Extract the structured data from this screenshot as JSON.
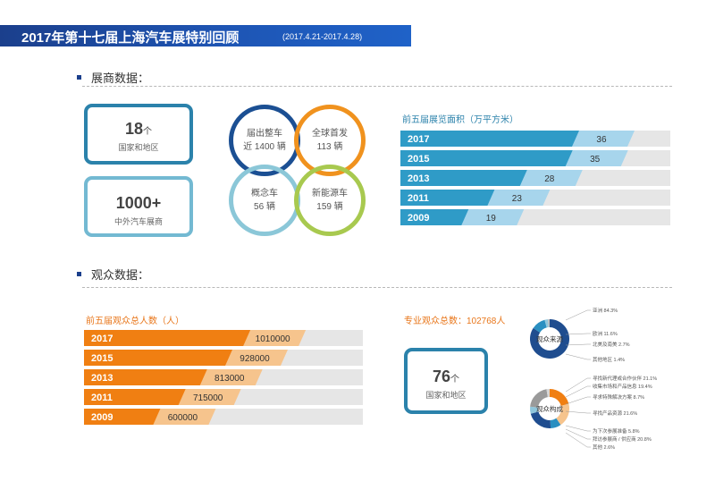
{
  "header": {
    "title": "2017年第十七届上海汽车展特别回顾",
    "date_range": "(2017.4.21-2017.4.28)"
  },
  "sections": {
    "exhibitor": "展商数据：",
    "audience": "观众数据："
  },
  "exhibitor_boxes": [
    {
      "num": "18",
      "unit": "个",
      "label": "国家和地区"
    },
    {
      "num": "1000+",
      "unit": "",
      "label": "中外汽车展商"
    }
  ],
  "circles": [
    {
      "line1": "届出整车",
      "line2": "近 1400 辆",
      "color": "#1b4f93"
    },
    {
      "line1": "全球首发",
      "line2": "113 辆",
      "color": "#f0921e"
    },
    {
      "line1": "概念车",
      "line2": "56 辆",
      "color": "#8bc7d8"
    },
    {
      "line1": "新能源车",
      "line2": "159 辆",
      "color": "#a8c94f"
    }
  ],
  "audience_total": "专业观众总数：102768人",
  "audience_box": {
    "num": "76",
    "unit": "个",
    "label": "国家和地区"
  },
  "colors": {
    "blue_bar": "#2f9bc7",
    "blue_tip": "#a7d5ec",
    "orange_bar": "#f07f12",
    "orange_tip": "#f6c48d",
    "track": "#e6e6e6",
    "orange_text": "#e8761a",
    "blue_text": "#2b82ab"
  },
  "chart_data": [
    {
      "type": "bar",
      "title": "前五届展览面积（万平方米）",
      "categories": [
        "2017",
        "2015",
        "2013",
        "2011",
        "2009"
      ],
      "values": [
        36,
        35,
        28,
        23,
        19
      ],
      "value_labels": [
        "36",
        "35",
        "28",
        "23",
        "19"
      ],
      "xlim": [
        0,
        41.5
      ],
      "orientation": "horizontal"
    },
    {
      "type": "bar",
      "title": "前五届观众总人数（人）",
      "categories": [
        "2017",
        "2015",
        "2013",
        "2011",
        "2009"
      ],
      "values": [
        1010000,
        928000,
        813000,
        715000,
        600000
      ],
      "value_labels": [
        "1010000",
        "928000",
        "813000",
        "715000",
        "600000"
      ],
      "xlim": [
        0,
        1270000
      ],
      "orientation": "horizontal"
    },
    {
      "type": "pie",
      "title": "观众来源",
      "slices": [
        {
          "label": "亚洲 84.3%",
          "value": 84.3,
          "color": "#1f4d8f"
        },
        {
          "label": "欧洲 11.6%",
          "value": 11.6,
          "color": "#2a8fc1"
        },
        {
          "label": "北美及南美 2.7%",
          "value": 2.7,
          "color": "#8fc6dc"
        },
        {
          "label": "其他地区 1.4%",
          "value": 1.4,
          "color": "#bcbcbc"
        }
      ]
    },
    {
      "type": "pie",
      "title": "观众构成",
      "slices": [
        {
          "label": "寻找新代理或合作伙伴 21.1%",
          "value": 21.1,
          "color": "#f07f12"
        },
        {
          "label": "收集市场和产品信息 19.4%",
          "value": 19.4,
          "color": "#f6c48d"
        },
        {
          "label": "寻求特殊解决方案 8.7%",
          "value": 8.7,
          "color": "#2a8fc1"
        },
        {
          "label": "寻找产品资源 21.6%",
          "value": 21.6,
          "color": "#1f4d8f"
        },
        {
          "label": "为下次参展准备 5.8%",
          "value": 5.8,
          "color": "#8fc6dc"
        },
        {
          "label": "拜访参展商 / 供应商 20.8%",
          "value": 20.8,
          "color": "#9a9a9a"
        },
        {
          "label": "其他 2.6%",
          "value": 2.6,
          "color": "#d6d6d6"
        }
      ]
    }
  ]
}
